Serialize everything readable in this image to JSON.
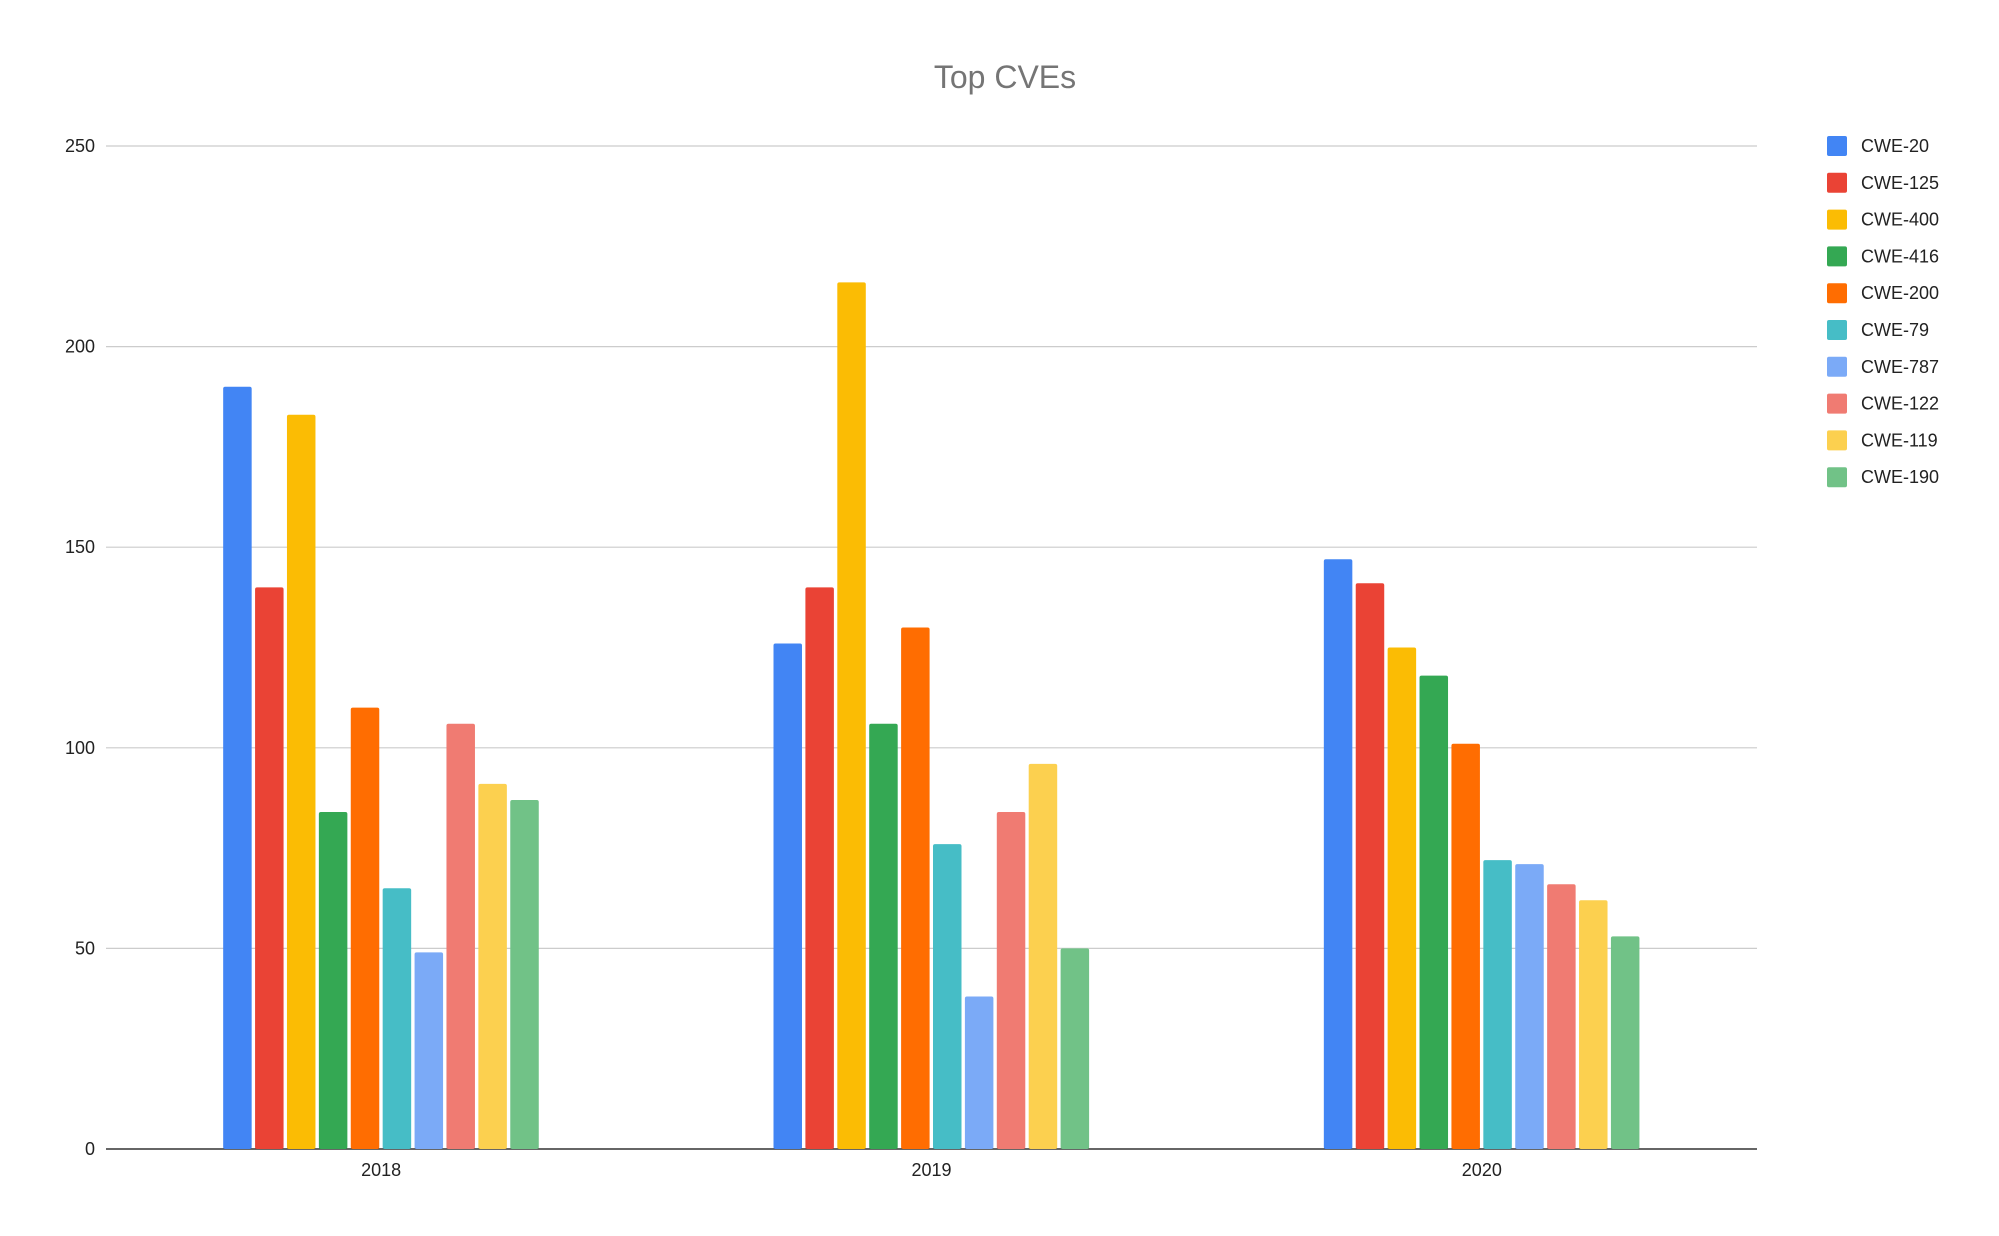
{
  "chart_data": {
    "type": "bar",
    "title": "Top CVEs",
    "xlabel": "",
    "ylabel": "",
    "ylim": [
      0,
      250
    ],
    "yticks": [
      0,
      50,
      100,
      150,
      200,
      250
    ],
    "grid": true,
    "legend_position": "right",
    "categories": [
      "2018",
      "2019",
      "2020"
    ],
    "series": [
      {
        "name": "CWE-20",
        "color": "#4285f4",
        "values": [
          190,
          126,
          147
        ]
      },
      {
        "name": "CWE-125",
        "color": "#ea4335",
        "values": [
          140,
          140,
          141
        ]
      },
      {
        "name": "CWE-400",
        "color": "#fbbc04",
        "values": [
          183,
          216,
          125
        ]
      },
      {
        "name": "CWE-416",
        "color": "#34a853",
        "values": [
          84,
          106,
          118
        ]
      },
      {
        "name": "CWE-200",
        "color": "#ff6d01",
        "values": [
          110,
          130,
          101
        ]
      },
      {
        "name": "CWE-79",
        "color": "#46bdc6",
        "values": [
          65,
          76,
          72
        ]
      },
      {
        "name": "CWE-787",
        "color": "#7baaf7",
        "values": [
          49,
          38,
          71
        ]
      },
      {
        "name": "CWE-122",
        "color": "#f07b72",
        "values": [
          106,
          84,
          66
        ]
      },
      {
        "name": "CWE-119",
        "color": "#fcd04f",
        "values": [
          91,
          96,
          62
        ]
      },
      {
        "name": "CWE-190",
        "color": "#71c287",
        "values": [
          87,
          50,
          53
        ]
      }
    ]
  }
}
